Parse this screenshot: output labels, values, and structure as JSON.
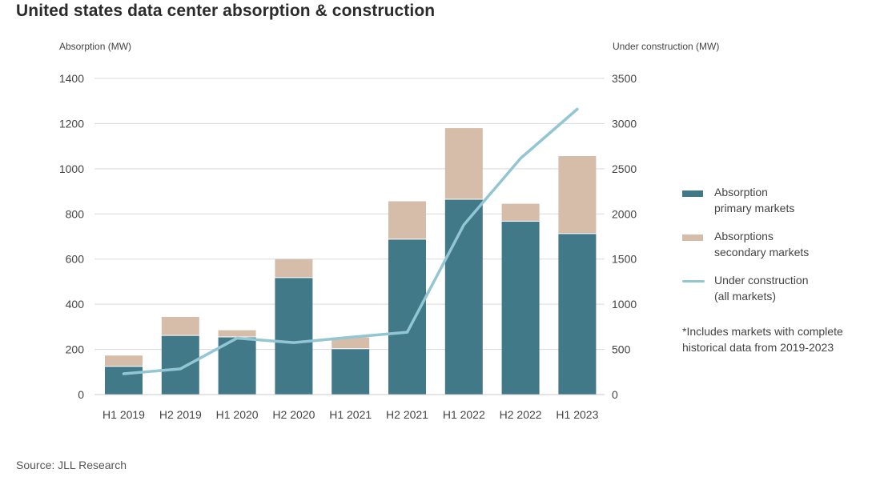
{
  "title": "United states data center absorption & construction",
  "source": "Source: JLL Research",
  "note": {
    "lines": [
      "*Includes markets with complete",
      "historical data from 2019-2023"
    ]
  },
  "legend": {
    "primary": [
      "Absorption",
      "primary markets"
    ],
    "secondary": [
      "Absorptions",
      "secondary markets"
    ],
    "construction": [
      "Under construction",
      "(all markets)"
    ]
  },
  "colors": {
    "primary": "#427989",
    "secondary": "#d6bdaa",
    "line": "#93c6d3",
    "grid": "#d9d9d9",
    "text": "#444444"
  },
  "chart_data": {
    "type": "bar",
    "stacked": true,
    "categories": [
      "H1 2019",
      "H2 2019",
      "H1 2020",
      "H2 2020",
      "H1 2021",
      "H2 2021",
      "H1 2022",
      "H2 2022",
      "H1 2023"
    ],
    "series": [
      {
        "name": "Absorption primary markets",
        "axis": "left",
        "values": [
          125,
          262,
          255,
          518,
          203,
          688,
          865,
          768,
          713
        ]
      },
      {
        "name": "Absorptions secondary markets",
        "axis": "left",
        "values": [
          48,
          82,
          30,
          82,
          50,
          168,
          315,
          77,
          343
        ]
      },
      {
        "name": "Under construction (all markets)",
        "type": "line",
        "axis": "right",
        "values": [
          230,
          285,
          625,
          575,
          635,
          690,
          1880,
          2615,
          3160
        ]
      }
    ],
    "ylabel": "Absorption (MW)",
    "y2label": "Under construction (MW)",
    "ylim": [
      0,
      1400
    ],
    "y2lim": [
      0,
      3500
    ],
    "yticks": [
      "0",
      "200",
      "400",
      "600",
      "800",
      "1000",
      "1200",
      "1400"
    ],
    "y2ticks": [
      "0",
      "500",
      "1000",
      "1500",
      "2000",
      "2500",
      "3000",
      "3500"
    ],
    "grid": true,
    "legend_position": "right"
  }
}
